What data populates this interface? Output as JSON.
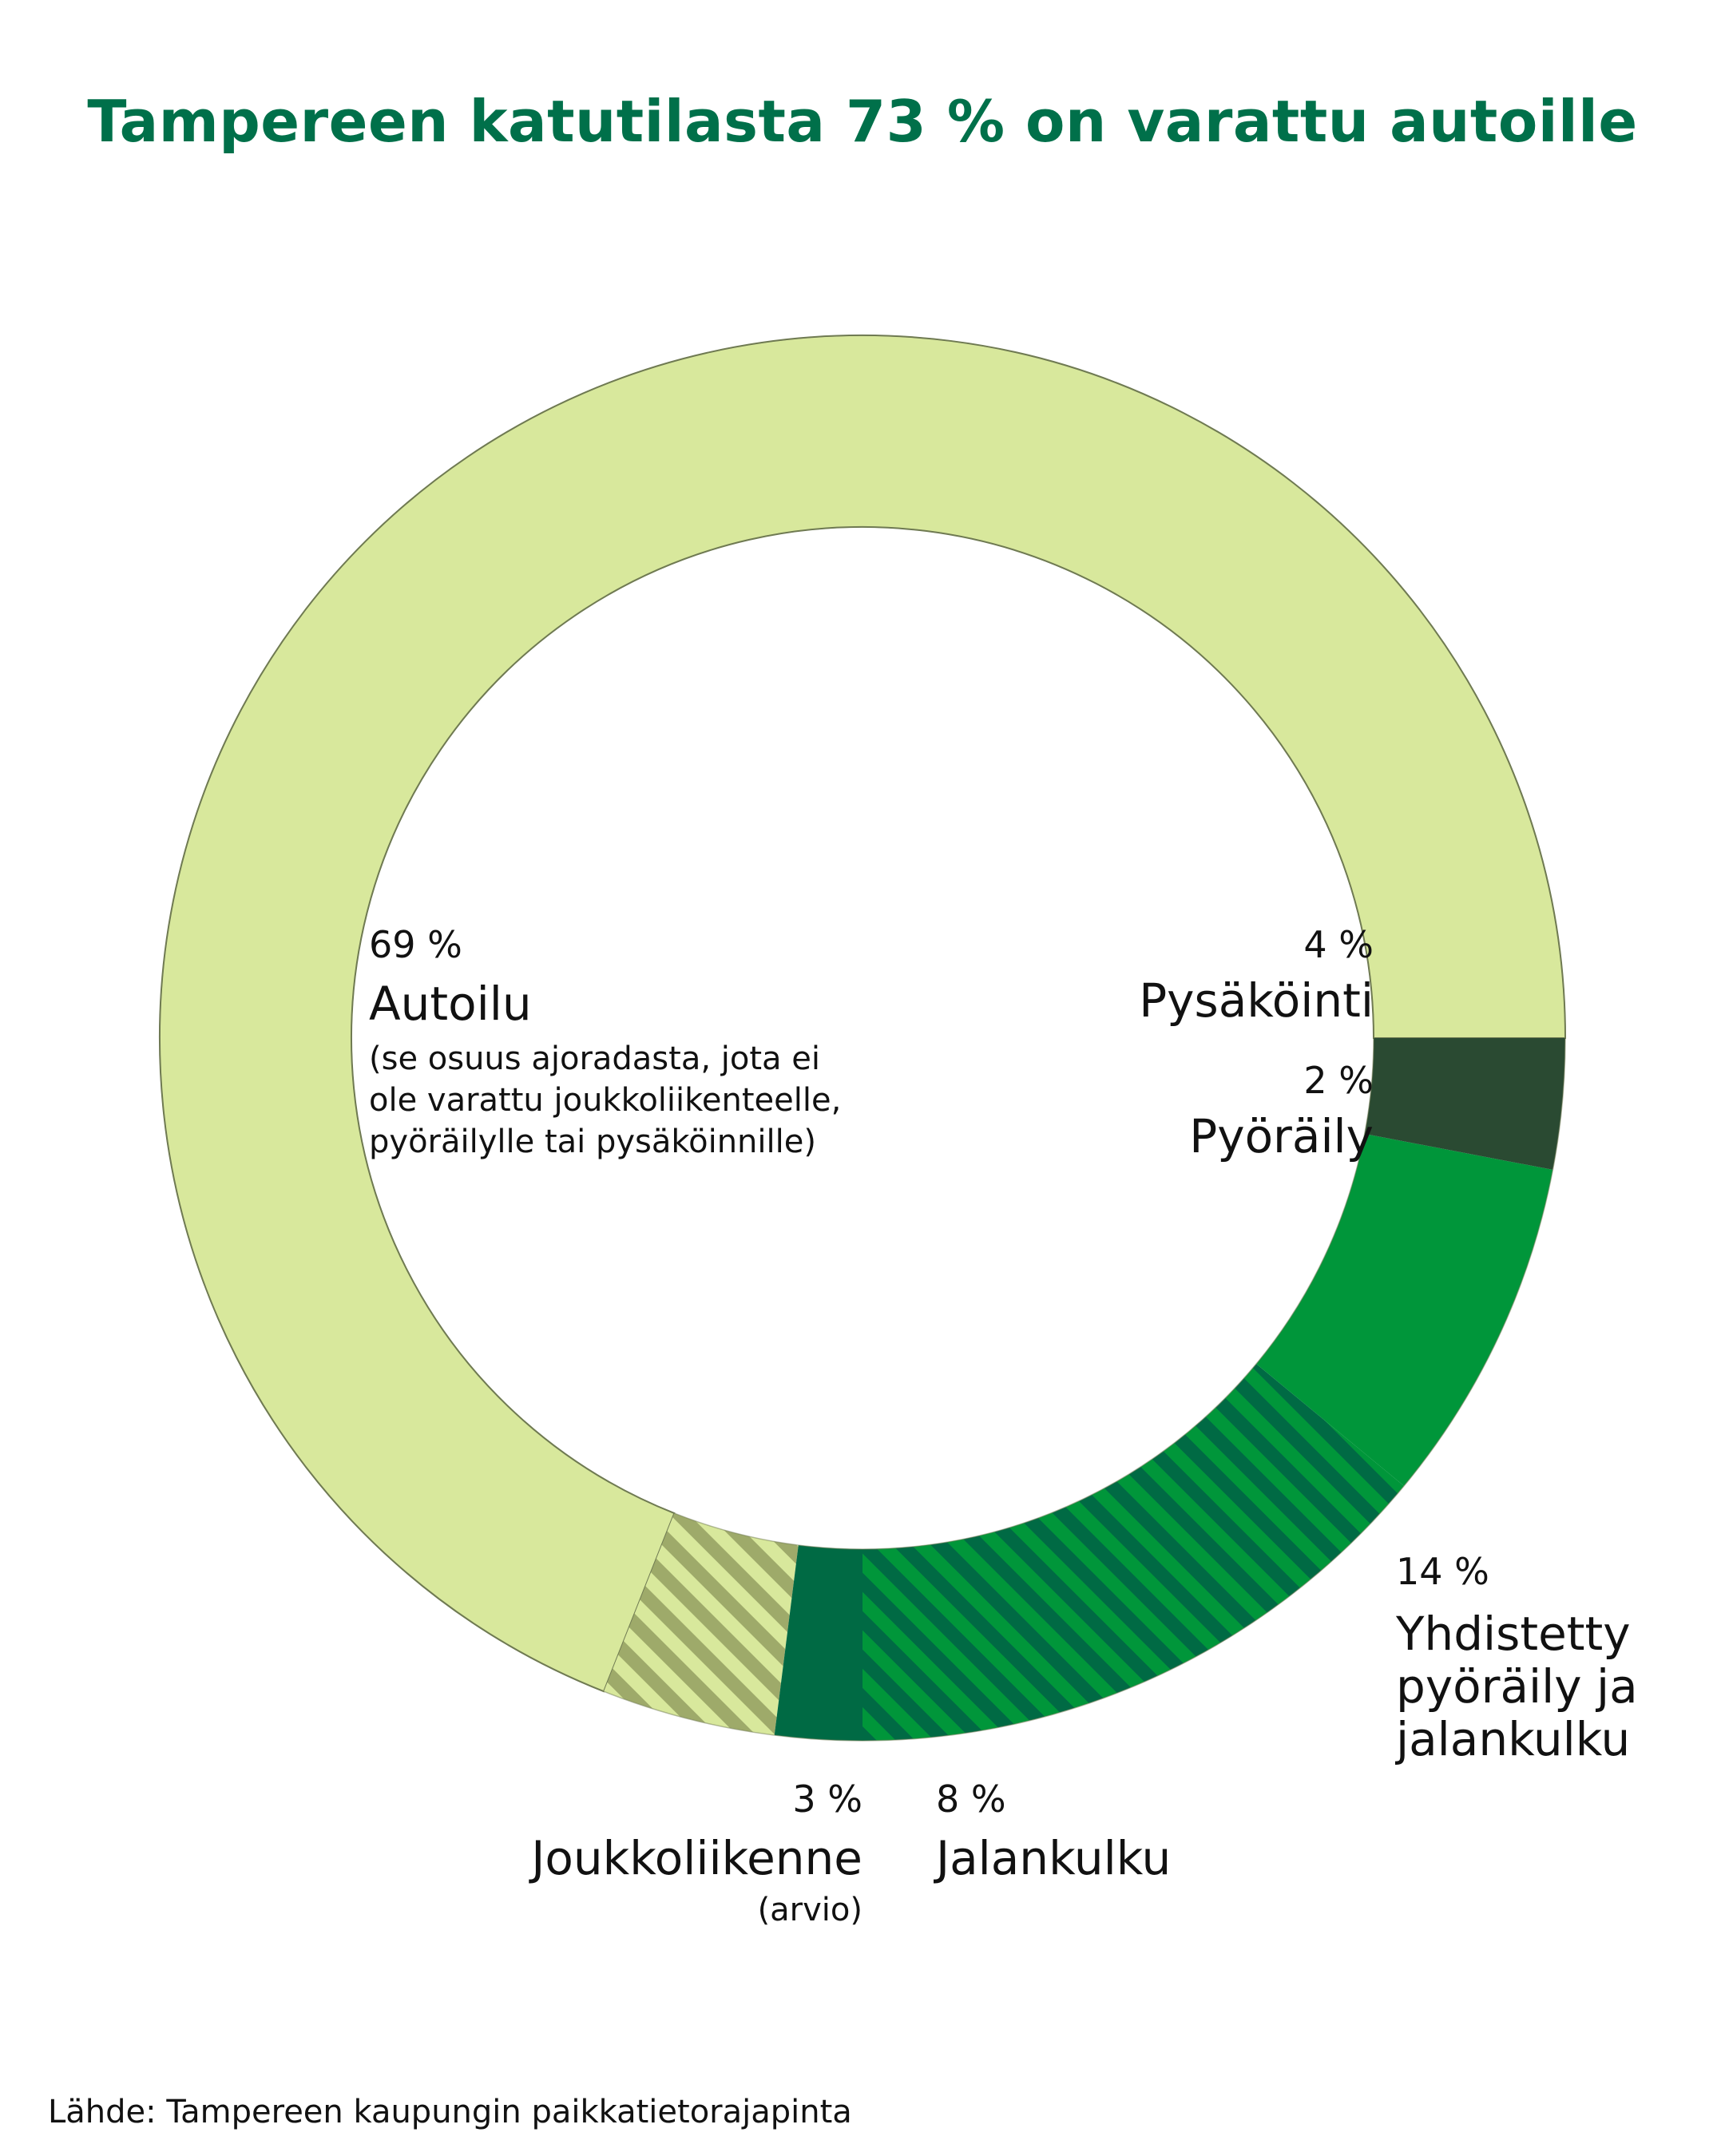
{
  "chart_data": {
    "type": "pie",
    "title": "Tampereen katutilasta 73 % on varattu autoille",
    "source": "Lähde: Tampereen kaupungin paikkatietorajapinta",
    "slices": [
      {
        "key": "autoilu",
        "value": 69,
        "pct_label": "69 %",
        "name": "Autoilu",
        "note": "(se osuus ajoradasta, jota ei ole varattu joukkoliikenteelle, pyöräilylle tai pysäköinnille)",
        "color": "#d8e89c",
        "pattern": "none"
      },
      {
        "key": "pysakointi",
        "value": 4,
        "pct_label": "4 %",
        "name": "Pysäköinti",
        "color": "#d8e89c",
        "stripe_color": "#9eaa6a",
        "pattern": "stripes"
      },
      {
        "key": "pyoraily",
        "value": 2,
        "pct_label": "2 %",
        "name": "Pyöräily",
        "color": "#006a44",
        "pattern": "none"
      },
      {
        "key": "yhdistetty",
        "value": 14,
        "pct_label": "14 %",
        "name": "Yhdistetty pyöräily ja jalankulku",
        "color": "#00963a",
        "stripe_color": "#006a44",
        "pattern": "stripes"
      },
      {
        "key": "jalankulku",
        "value": 8,
        "pct_label": "8 %",
        "name": "Jalankulku",
        "color": "#00963a",
        "pattern": "none"
      },
      {
        "key": "joukkoliikenne",
        "value": 3,
        "pct_label": "3 %",
        "name": "Joukkoliikenne",
        "note": "(arvio)",
        "color": "#2a4a32",
        "pattern": "none"
      }
    ]
  },
  "labels": {
    "yhdistetty_lines": [
      "Yhdistetty",
      "pyöräily ja",
      "jalankulku"
    ],
    "autoilu_note_lines": [
      "(se osuus ajoradasta, jota ei",
      "ole varattu joukkoliikenteelle,",
      "pyöräilylle tai pysäköinnille)"
    ]
  },
  "colors": {
    "title": "#00704a",
    "outline": "#6f7a52"
  }
}
